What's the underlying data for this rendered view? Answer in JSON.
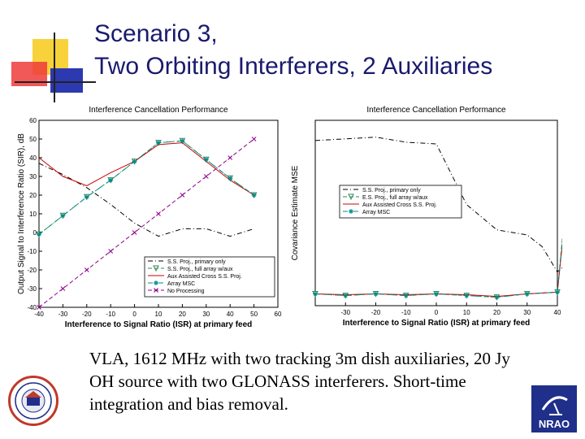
{
  "slide": {
    "title_line1": "Scenario 3,",
    "title_line2": "Two Orbiting Interferers, 2 Auxiliaries",
    "caption": "VLA, 1612 MHz with two tracking 3m dish auxiliaries, 20 Jy OH source with two GLONASS interferers.  Short-time integration and bias removal.",
    "nrao_logo_text": "NRAO"
  },
  "chart_data": [
    {
      "type": "line",
      "title": "Interference Cancellation Performance",
      "xlabel": "Interference to Signal Ratio (ISR) at primary feed",
      "ylabel": "Output Signal to Interference Ratio (SIR), dB",
      "xlim": [
        -40,
        60
      ],
      "ylim": [
        -40,
        60
      ],
      "x_ticks": [
        "-40",
        "-30",
        "-20",
        "-10",
        "0",
        "10",
        "20",
        "30",
        "40",
        "50",
        "60"
      ],
      "y_ticks": [
        "60",
        "50",
        "40",
        "30",
        "20",
        "10",
        "0",
        "-10",
        "-20",
        "-30",
        "-40"
      ],
      "grid": false,
      "legend_position": "bottom-right",
      "series": [
        {
          "name": "S.S. Proj., primary only",
          "color": "#000000",
          "style": "dashdot",
          "x": [
            -40,
            -30,
            -20,
            -10,
            0,
            10,
            20,
            30,
            40,
            50
          ],
          "y": [
            37,
            31,
            24,
            15,
            5,
            -2,
            2,
            2,
            -2,
            2
          ]
        },
        {
          "name": "S.S. Proj., full array w/aux",
          "color": "#2e8b57",
          "style": "dashed",
          "marker": "triangle",
          "x": [
            -40,
            -30,
            -20,
            -10,
            0,
            10,
            20,
            30,
            40,
            50
          ],
          "y": [
            -1,
            9,
            19,
            28,
            38,
            48,
            49,
            39,
            29,
            20
          ]
        },
        {
          "name": "Aux Assisted Cross S.S. Proj.",
          "color": "#cc0000",
          "style": "solid",
          "x": [
            -40,
            -30,
            -20,
            -10,
            0,
            10,
            20,
            30,
            40,
            50
          ],
          "y": [
            40,
            30,
            25,
            32,
            38,
            47,
            48,
            38,
            28,
            20
          ]
        },
        {
          "name": "Array MSC",
          "color": "#008b8b",
          "style": "dashdot",
          "marker": "star",
          "x": [
            -40,
            -30,
            -20,
            -10,
            0,
            10,
            20,
            30,
            40,
            50
          ],
          "y": [
            -1,
            9,
            19,
            28,
            38,
            48,
            49,
            39,
            29,
            20
          ]
        },
        {
          "name": "No Processing",
          "color": "#8b008b",
          "style": "dashed",
          "marker": "x",
          "x": [
            -40,
            -30,
            -20,
            -10,
            0,
            10,
            20,
            30,
            40,
            50
          ],
          "y": [
            -40,
            -30,
            -20,
            -10,
            0,
            10,
            20,
            30,
            40,
            50
          ]
        }
      ]
    },
    {
      "type": "line",
      "title": "Interference Cancellation Performance",
      "xlabel": "Interference to Signal Ratio (ISR) at primary feed",
      "ylabel": "Covariance Estimate MSE",
      "xlim": [
        -40,
        40
      ],
      "x_ticks": [
        "-30",
        "-20",
        "-10",
        "0",
        "10",
        "20",
        "30",
        "40"
      ],
      "y_ticks": [],
      "grid": false,
      "legend_position": "top-right",
      "series": [
        {
          "name": "S.S. Proj., primary only",
          "color": "#000000",
          "style": "dashdot",
          "x": [
            -40,
            -30,
            -20,
            -10,
            0,
            10,
            20,
            30,
            35,
            40,
            45
          ],
          "y": [
            0.98,
            0.99,
            1.0,
            0.97,
            0.96,
            0.6,
            0.45,
            0.42,
            0.35,
            0.2,
            0.28
          ]
        },
        {
          "name": "E.S. Proj., full array w/aux",
          "color": "#2e8b57",
          "style": "dashed",
          "marker": "triangle",
          "x": [
            -40,
            -30,
            -20,
            -10,
            0,
            10,
            20,
            30,
            40,
            45
          ],
          "y": [
            0.07,
            0.06,
            0.07,
            0.06,
            0.07,
            0.06,
            0.05,
            0.07,
            0.08,
            1.05
          ]
        },
        {
          "name": "Aux Assisted Cross S.S. Proj.",
          "color": "#cc0000",
          "style": "solid",
          "x": [
            -40,
            -30,
            -20,
            -10,
            0,
            10,
            20,
            30,
            40,
            45
          ],
          "y": [
            0.07,
            0.065,
            0.07,
            0.065,
            0.07,
            0.065,
            0.055,
            0.07,
            0.08,
            0.95
          ]
        },
        {
          "name": "Array MSC",
          "color": "#008b8b",
          "style": "dashdot",
          "marker": "star",
          "x": [
            -40,
            -30,
            -20,
            -10,
            0,
            10,
            20,
            30,
            40,
            45
          ],
          "y": [
            0.07,
            0.06,
            0.07,
            0.06,
            0.07,
            0.06,
            0.05,
            0.07,
            0.08,
            1.0
          ]
        }
      ]
    }
  ]
}
